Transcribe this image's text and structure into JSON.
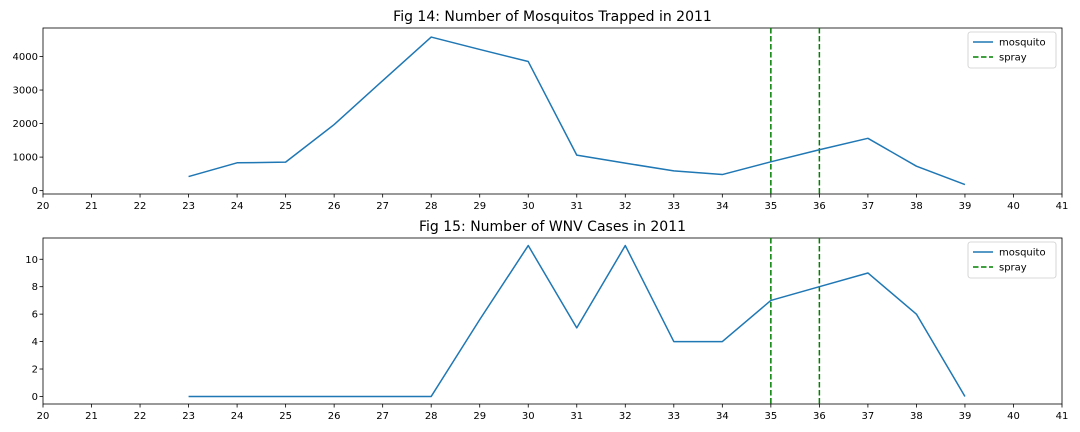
{
  "chart_data": [
    {
      "type": "line",
      "title": "Fig 14: Number of Mosquitos Trapped in 2011",
      "xlabel": "",
      "ylabel": "",
      "xlim": [
        20,
        41
      ],
      "ylim": [
        -100,
        4850
      ],
      "x_ticks": [
        20,
        21,
        22,
        23,
        24,
        25,
        26,
        27,
        28,
        29,
        30,
        31,
        32,
        33,
        34,
        35,
        36,
        37,
        38,
        39,
        40,
        41
      ],
      "y_ticks": [
        0,
        1000,
        2000,
        3000,
        4000
      ],
      "series": [
        {
          "name": "mosquito",
          "color": "#1f77b4",
          "style": "solid",
          "x": [
            23,
            24,
            25,
            26,
            27,
            28,
            29,
            30,
            31,
            32,
            33,
            34,
            35,
            36,
            37,
            38,
            39
          ],
          "y": [
            420,
            830,
            850,
            1970,
            3280,
            4580,
            4210,
            3850,
            1060,
            820,
            590,
            480,
            860,
            1220,
            1560,
            730,
            180
          ]
        }
      ],
      "vlines": [
        {
          "name": "spray",
          "color": "#008000",
          "style": "dashed",
          "x": [
            35,
            36
          ]
        }
      ],
      "legend": {
        "placement": "top-right",
        "entries": [
          "mosquito",
          "spray"
        ]
      },
      "grid": false
    },
    {
      "type": "line",
      "title": "Fig 15: Number of WNV Cases in 2011",
      "xlabel": "",
      "ylabel": "",
      "xlim": [
        20,
        41
      ],
      "ylim": [
        -0.55,
        11.55
      ],
      "x_ticks": [
        20,
        21,
        22,
        23,
        24,
        25,
        26,
        27,
        28,
        29,
        30,
        31,
        32,
        33,
        34,
        35,
        36,
        37,
        38,
        39,
        40,
        41
      ],
      "y_ticks": [
        0,
        2,
        4,
        6,
        8,
        10
      ],
      "series": [
        {
          "name": "mosquito",
          "color": "#1f77b4",
          "style": "solid",
          "x": [
            23,
            24,
            25,
            26,
            27,
            28,
            29,
            30,
            31,
            32,
            33,
            34,
            35,
            36,
            37,
            38,
            39
          ],
          "y": [
            0,
            0,
            0,
            0,
            0,
            0,
            5.6,
            11,
            5,
            11,
            4,
            4,
            7,
            8,
            9,
            6,
            0
          ]
        }
      ],
      "vlines": [
        {
          "name": "spray",
          "color": "#008000",
          "style": "dashed",
          "x": [
            35,
            36
          ]
        }
      ],
      "legend": {
        "placement": "top-right",
        "entries": [
          "mosquito",
          "spray"
        ]
      },
      "grid": false
    }
  ]
}
